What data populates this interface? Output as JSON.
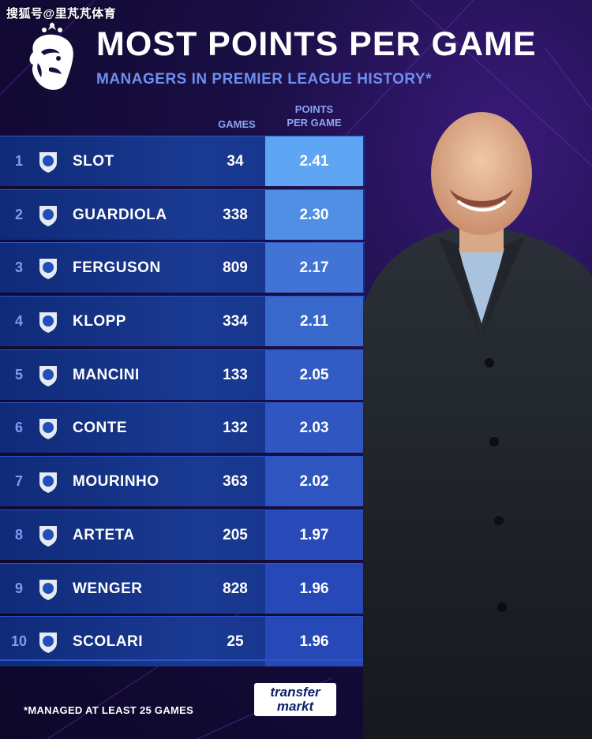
{
  "watermark": "搜狐号@里芃芃体育",
  "title": "MOST POINTS PER GAME",
  "subtitle": "MANAGERS IN PREMIER LEAGUE HISTORY*",
  "columns": {
    "games": "GAMES",
    "ppg_line1": "POINTS",
    "ppg_line2": "PER GAME"
  },
  "colors": {
    "background": "#140b38",
    "row": "#163488",
    "accent_text": "#6f8ff0",
    "ppg_max": "#5ea6f3",
    "ppg_min": "#2749b8"
  },
  "rows": [
    {
      "rank": "1",
      "crest": "liverpool-lfc-crest-icon",
      "name": "SLOT",
      "games": "34",
      "ppg": "2.41"
    },
    {
      "rank": "2",
      "crest": "man-city-crest-icon",
      "name": "GUARDIOLA",
      "games": "338",
      "ppg": "2.30"
    },
    {
      "rank": "3",
      "crest": "man-united-crest-icon",
      "name": "FERGUSON",
      "games": "809",
      "ppg": "2.17"
    },
    {
      "rank": "4",
      "crest": "liverpool-crest-icon",
      "name": "KLOPP",
      "games": "334",
      "ppg": "2.11"
    },
    {
      "rank": "5",
      "crest": "man-city-old-crest-icon",
      "name": "MANCINI",
      "games": "133",
      "ppg": "2.05"
    },
    {
      "rank": "6",
      "crest": "tottenham-chelsea-crest-icon",
      "name": "CONTE",
      "games": "132",
      "ppg": "2.03"
    },
    {
      "rank": "7",
      "crest": "tottenham-united-crest-icon",
      "name": "MOURINHO",
      "games": "363",
      "ppg": "2.02"
    },
    {
      "rank": "8",
      "crest": "arsenal-crest-icon",
      "name": "ARTETA",
      "games": "205",
      "ppg": "1.97"
    },
    {
      "rank": "9",
      "crest": "arsenal-crest-icon",
      "name": "WENGER",
      "games": "828",
      "ppg": "1.96"
    },
    {
      "rank": "10",
      "crest": "chelsea-crest-icon",
      "name": "SCOLARI",
      "games": "25",
      "ppg": "1.96"
    }
  ],
  "footnote": "*MANAGED AT LEAST 25 GAMES",
  "brand": {
    "line1": "transfer",
    "line2": "markt"
  }
}
